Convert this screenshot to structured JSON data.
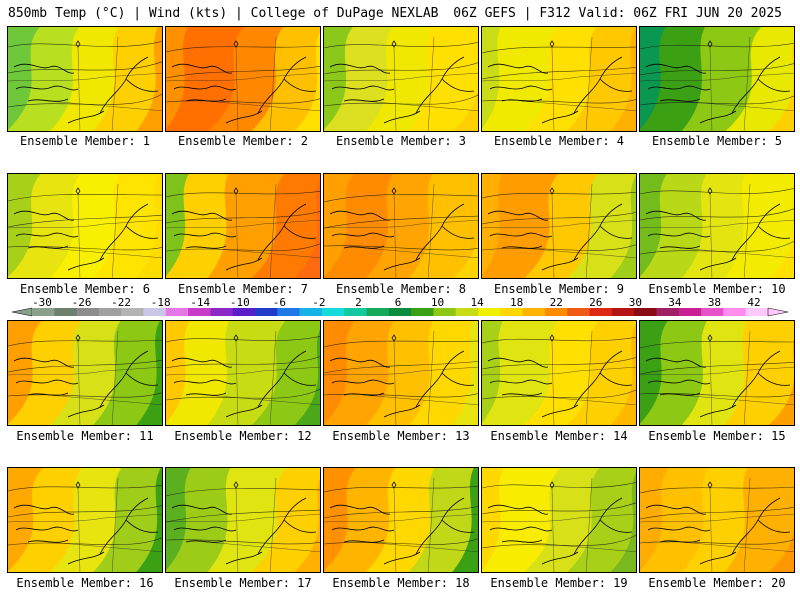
{
  "header": {
    "left": "850mb Temp (°C) | Wind (kts) | College of DuPage NEXLAB",
    "right": "06Z GEFS | F312 Valid: 06Z FRI JUN 20 2025"
  },
  "colorbar": {
    "ticks": [
      "-30",
      "-26",
      "-22",
      "-18",
      "-14",
      "-10",
      "-6",
      "-2",
      "2",
      "6",
      "10",
      "14",
      "18",
      "22",
      "26",
      "30",
      "34",
      "38",
      "42"
    ],
    "colors": [
      "#8aa08a",
      "#6f7f6f",
      "#8c8c8c",
      "#a0a0a0",
      "#b4b4b4",
      "#c8c8e6",
      "#e678e6",
      "#c83cc8",
      "#8c28c8",
      "#5a1ec8",
      "#1e3cc8",
      "#1e78e6",
      "#14b4e6",
      "#14dcdc",
      "#14c8a0",
      "#14aa5a",
      "#0a8c3c",
      "#3ca014",
      "#8cc814",
      "#c8dc14",
      "#f0f000",
      "#ffd700",
      "#ffb400",
      "#ff8c00",
      "#f05a14",
      "#dc2814",
      "#b41414",
      "#8c0a14",
      "#a01e64",
      "#c81e96",
      "#e650c8",
      "#ff8cf0",
      "#ffc8ff"
    ]
  },
  "members": [
    {
      "label": "Ensemble Member: 1",
      "scheme": "cool",
      "colors": [
        "#3dd8e0",
        "#6ec83a",
        "#b8e020",
        "#f0e800",
        "#ffd000",
        "#ffa000"
      ]
    },
    {
      "label": "Ensemble Member: 2",
      "scheme": "hot",
      "colors": [
        "#ffb000",
        "#ff9000",
        "#ff7000",
        "#ff8800",
        "#ffc000",
        "#ffe000"
      ]
    },
    {
      "label": "Ensemble Member: 3",
      "scheme": "mild",
      "colors": [
        "#3ca020",
        "#8cc81a",
        "#dde020",
        "#f0e800",
        "#ffe000",
        "#ffd000"
      ]
    },
    {
      "label": "Ensemble Member: 4",
      "scheme": "mild",
      "colors": [
        "#7ab820",
        "#c8dc18",
        "#f0ea00",
        "#ffe000",
        "#ffc800",
        "#ffb000"
      ]
    },
    {
      "label": "Ensemble Member: 5",
      "scheme": "cool",
      "colors": [
        "#14b4a0",
        "#0a9850",
        "#3ca014",
        "#8cc814",
        "#e8e800",
        "#ffd000"
      ]
    },
    {
      "label": "Ensemble Member: 6",
      "scheme": "mild",
      "colors": [
        "#5cb428",
        "#a8d018",
        "#e8e410",
        "#f8f000",
        "#ffe400",
        "#ffdc00"
      ]
    },
    {
      "label": "Ensemble Member: 7",
      "scheme": "hot",
      "colors": [
        "#2e9e2e",
        "#7fc21a",
        "#ffd000",
        "#ffa000",
        "#ff7a00",
        "#ff6a10"
      ]
    },
    {
      "label": "Ensemble Member: 8",
      "scheme": "hot",
      "colors": [
        "#ffb800",
        "#ffa000",
        "#ff8c00",
        "#ffa400",
        "#ffc000",
        "#ffd400"
      ]
    },
    {
      "label": "Ensemble Member: 9",
      "scheme": "mild",
      "colors": [
        "#ffc800",
        "#ffb000",
        "#ff9c00",
        "#ffc800",
        "#d8e018",
        "#a0cc1a"
      ]
    },
    {
      "label": "Ensemble Member: 10",
      "scheme": "mild",
      "colors": [
        "#2e9e2e",
        "#74bc1c",
        "#b8d818",
        "#e4e410",
        "#f4ec00",
        "#ffe000"
      ]
    },
    {
      "label": "Ensemble Member: 11",
      "scheme": "hot",
      "colors": [
        "#ff8c00",
        "#ffa000",
        "#ffd000",
        "#d8e018",
        "#8cc814",
        "#3ca014"
      ]
    },
    {
      "label": "Ensemble Member: 12",
      "scheme": "mild",
      "colors": [
        "#ffb000",
        "#ffc800",
        "#f0e800",
        "#c8dc14",
        "#8cc814",
        "#4aa81a"
      ]
    },
    {
      "label": "Ensemble Member: 13",
      "scheme": "hot",
      "colors": [
        "#ff7a00",
        "#ff8c00",
        "#ffa400",
        "#ffc000",
        "#ffd800",
        "#e8e410"
      ]
    },
    {
      "label": "Ensemble Member: 14",
      "scheme": "mild",
      "colors": [
        "#6cb81e",
        "#a8d018",
        "#e0e410",
        "#ffe000",
        "#ffd000",
        "#ffb800"
      ]
    },
    {
      "label": "Ensemble Member: 15",
      "scheme": "cool",
      "colors": [
        "#14a050",
        "#3ca014",
        "#8cc814",
        "#e0e410",
        "#ffd000",
        "#ffa000"
      ]
    },
    {
      "label": "Ensemble Member: 16",
      "scheme": "hot",
      "colors": [
        "#ff9000",
        "#ffa800",
        "#ffd000",
        "#e8e410",
        "#a0cc1a",
        "#3ca014"
      ]
    },
    {
      "label": "Ensemble Member: 17",
      "scheme": "cool",
      "colors": [
        "#2e9a2e",
        "#5cb020",
        "#9ccc18",
        "#e0e410",
        "#ffd000",
        "#ffb000"
      ]
    },
    {
      "label": "Ensemble Member: 18",
      "scheme": "hot",
      "colors": [
        "#ff7000",
        "#ff9000",
        "#ffb400",
        "#ffd800",
        "#c0d818",
        "#3ca014"
      ]
    },
    {
      "label": "Ensemble Member: 19",
      "scheme": "mild",
      "colors": [
        "#ffc400",
        "#ffd800",
        "#f8ec00",
        "#d8e018",
        "#a8d018",
        "#7ab820"
      ]
    },
    {
      "label": "Ensemble Member: 20",
      "scheme": "hot",
      "colors": [
        "#ff9c00",
        "#ffac00",
        "#ffc000",
        "#ffd000",
        "#ffb000",
        "#ff9800"
      ]
    }
  ]
}
